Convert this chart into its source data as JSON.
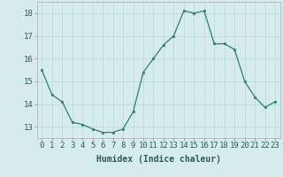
{
  "x": [
    0,
    1,
    2,
    3,
    4,
    5,
    6,
    7,
    8,
    9,
    10,
    11,
    12,
    13,
    14,
    15,
    16,
    17,
    18,
    19,
    20,
    21,
    22,
    23
  ],
  "y": [
    15.5,
    14.4,
    14.1,
    13.2,
    13.1,
    12.9,
    12.75,
    12.75,
    12.9,
    13.65,
    15.4,
    16.0,
    16.6,
    17.0,
    18.1,
    18.0,
    18.1,
    16.65,
    16.65,
    16.4,
    15.0,
    14.3,
    13.85,
    14.1
  ],
  "line_color": "#2e7d6e",
  "marker_color": "#2e7d6e",
  "bg_color": "#d6ecea",
  "grid_color": "#b8d8d4",
  "xlabel": "Humidex (Indice chaleur)",
  "ylabel_ticks": [
    13,
    14,
    15,
    16,
    17,
    18
  ],
  "ylim": [
    12.5,
    18.5
  ],
  "xlim": [
    -0.5,
    23.5
  ],
  "xlabel_fontsize": 7,
  "tick_fontsize": 6.5
}
